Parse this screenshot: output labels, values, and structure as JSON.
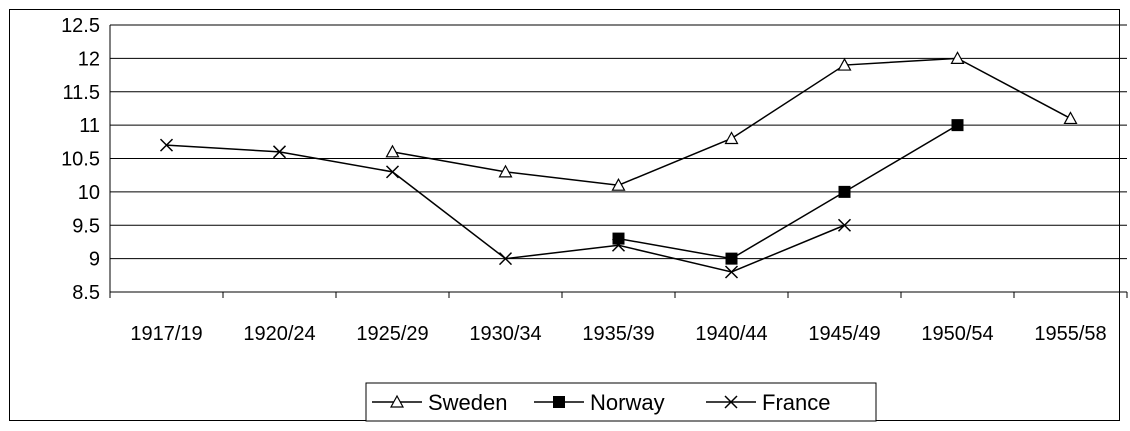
{
  "chart_data": {
    "type": "line",
    "categories": [
      "1917/19",
      "1920/24",
      "1925/29",
      "1930/34",
      "1935/39",
      "1940/44",
      "1945/49",
      "1950/54",
      "1955/58"
    ],
    "ylim": [
      8.5,
      12.5
    ],
    "yticks": [
      "12.5",
      "12",
      "11.5",
      "11",
      "10.5",
      "10",
      "9.5",
      "9",
      "8.5"
    ],
    "ytick_values": [
      12.5,
      12,
      11.5,
      11,
      10.5,
      10,
      9.5,
      9,
      8.5
    ],
    "grid": true,
    "legend_position": "bottom",
    "series": [
      {
        "name": "Sweden",
        "marker": "triangle-open",
        "values": [
          null,
          null,
          10.6,
          10.3,
          10.1,
          10.8,
          11.9,
          12.0,
          11.1
        ]
      },
      {
        "name": "Norway",
        "marker": "square-filled",
        "values": [
          null,
          null,
          null,
          null,
          9.3,
          9.0,
          10.0,
          11.0,
          null
        ]
      },
      {
        "name": "France",
        "marker": "x",
        "values": [
          10.7,
          10.6,
          10.3,
          9.0,
          9.2,
          8.8,
          9.5,
          null,
          null
        ]
      }
    ]
  }
}
